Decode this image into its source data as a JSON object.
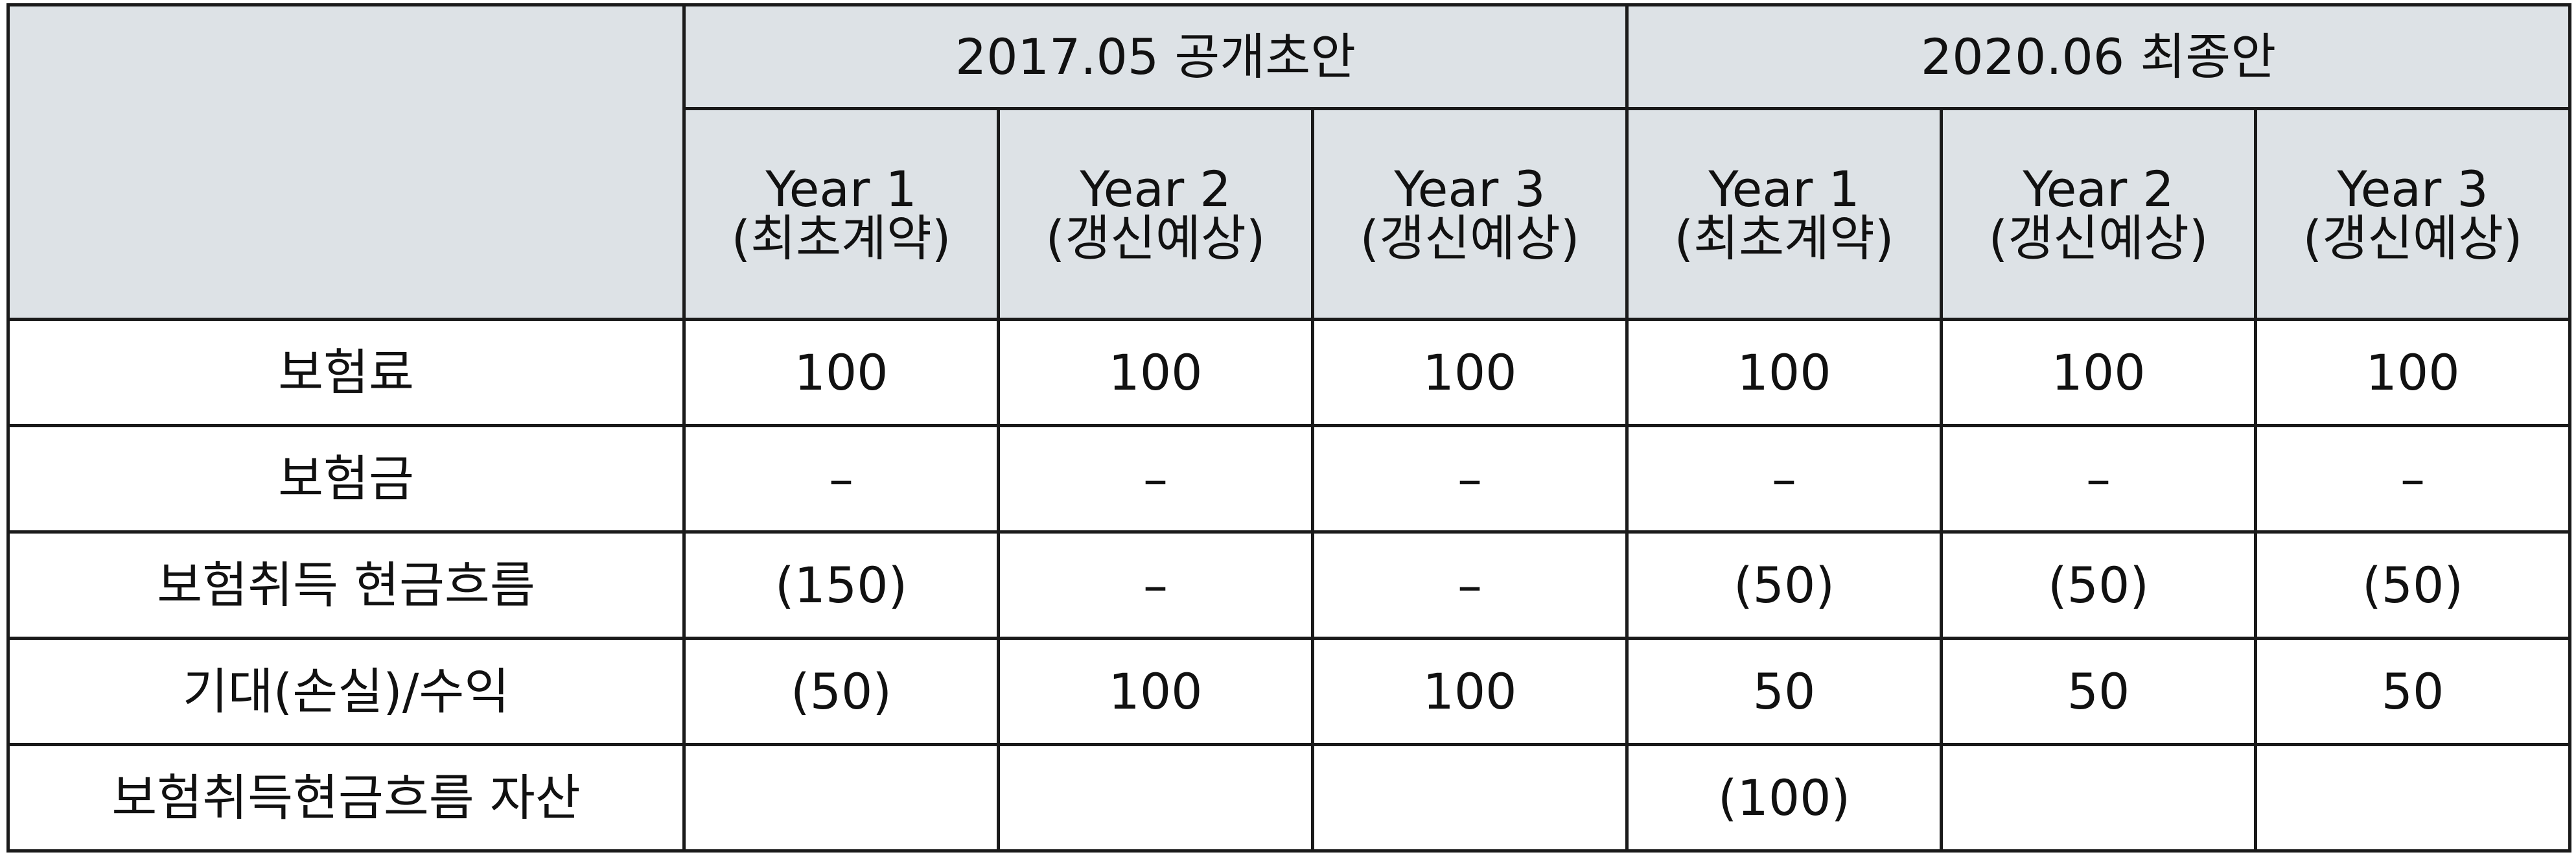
{
  "table": {
    "groups": [
      {
        "label": "2017.05 공개초안"
      },
      {
        "label": "2020.06 최종안"
      }
    ],
    "columns": [
      {
        "year": "Year 1",
        "note": "(최초계약)"
      },
      {
        "year": "Year 2",
        "note": "(갱신예상)"
      },
      {
        "year": "Year 3",
        "note": "(갱신예상)"
      },
      {
        "year": "Year 1",
        "note": "(최초계약)"
      },
      {
        "year": "Year 2",
        "note": "(갱신예상)"
      },
      {
        "year": "Year 3",
        "note": "(갱신예상)"
      }
    ],
    "rows": [
      {
        "label": "보험료",
        "values": [
          "100",
          "100",
          "100",
          "100",
          "100",
          "100"
        ]
      },
      {
        "label": "보험금",
        "values": [
          "–",
          "–",
          "–",
          "–",
          "–",
          "–"
        ]
      },
      {
        "label": "보험취득 현금흐름",
        "values": [
          "(150)",
          "–",
          "–",
          "(50)",
          "(50)",
          "(50)"
        ]
      },
      {
        "label": "기대(손실)/수익",
        "values": [
          "(50)",
          "100",
          "100",
          "50",
          "50",
          "50"
        ]
      },
      {
        "label": "보험취득현금흐름 자산",
        "values": [
          "",
          "",
          "",
          "(100)",
          "",
          ""
        ]
      }
    ]
  }
}
